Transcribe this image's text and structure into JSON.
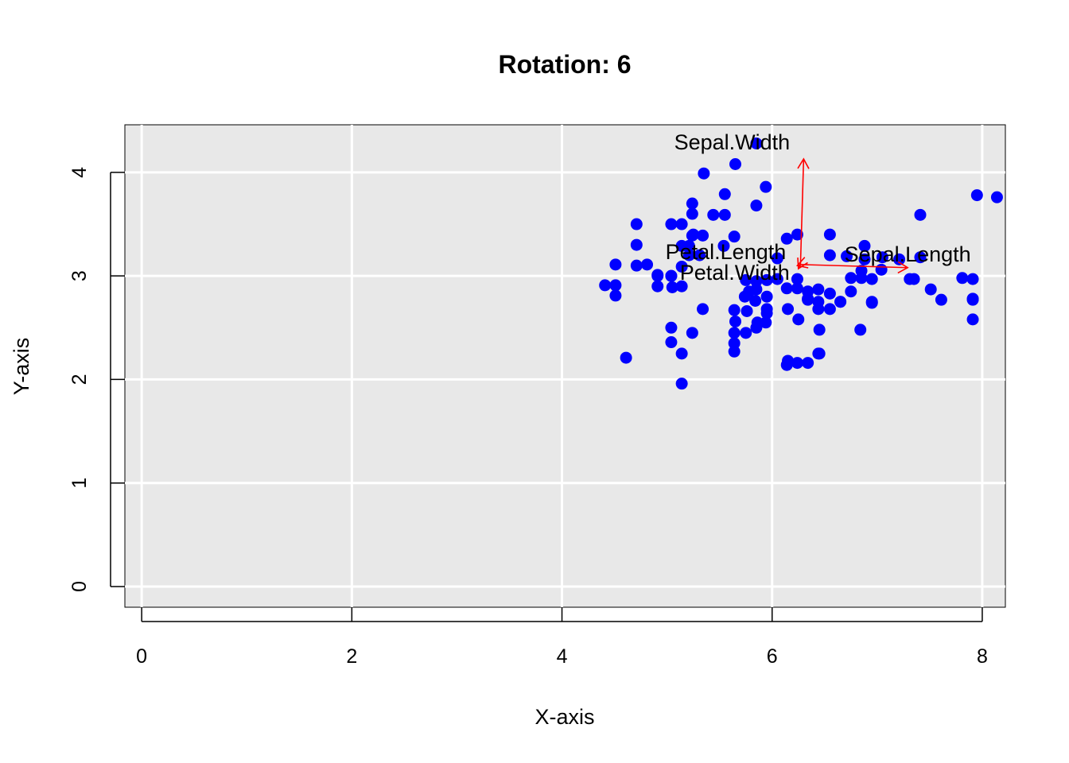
{
  "chart_data": {
    "type": "scatter",
    "title": "Rotation: 6",
    "xlabel": "X-axis",
    "ylabel": "Y-axis",
    "xlim": [
      -0.16,
      8.22
    ],
    "ylim": [
      -0.2,
      4.46
    ],
    "x_ticks": [
      "0",
      "2",
      "4",
      "6",
      "8"
    ],
    "y_ticks": [
      "0",
      "1",
      "2",
      "3",
      "4"
    ],
    "grid": true,
    "colors": {
      "panel_background": "#e8e8e8",
      "grid": "#ffffff",
      "points": "#0000ff",
      "arrows": "#ff0000"
    },
    "points": {
      "x": [
        5.85,
        5.65,
        5.35,
        5.94,
        5.55,
        5.55,
        5.85,
        5.44,
        5.24,
        5.24,
        5.25,
        4.71,
        5.04,
        5.14,
        5.24,
        5.34,
        5.14,
        5.21,
        5.64,
        4.71,
        4.51,
        4.81,
        4.71,
        4.41,
        4.51,
        4.51,
        5.04,
        4.91,
        5.14,
        5.54,
        5.04,
        5.31,
        5.21,
        5.14,
        6.14,
        6.05,
        6.24,
        6.55,
        6.55,
        6.71,
        6.88,
        6.88,
        7.04,
        7.21,
        7.41,
        7.41,
        7.35,
        7.81,
        7.91,
        7.91,
        7.95,
        8.14,
        7.91,
        7.91,
        7.61,
        7.51,
        7.31,
        7.05,
        6.95,
        6.85,
        6.75,
        6.55,
        6.34,
        6.14,
        6.24,
        6.34,
        6.44,
        6.55,
        6.65,
        6.75,
        6.95,
        6.45,
        6.45,
        6.25,
        6.65,
        6.44,
        6.34,
        6.15,
        6.44,
        6.24,
        6.05,
        5.95,
        5.85,
        5.85,
        5.75,
        5.78,
        5.84,
        5.86,
        5.94,
        5.75,
        5.64,
        5.64,
        5.64,
        5.76,
        5.85,
        5.95,
        5.95,
        5.95,
        5.65,
        5.64,
        5.74,
        6.15,
        6.24,
        6.14,
        6.34,
        6.44,
        5.04,
        5.04,
        5.14,
        5.24,
        5.34,
        4.61,
        5.14,
        4.91,
        4.91,
        5.05,
        6.84,
        6.95,
        6.85
      ],
      "y": [
        4.28,
        4.08,
        3.99,
        3.86,
        3.79,
        3.59,
        3.68,
        3.59,
        3.7,
        3.6,
        3.4,
        3.5,
        3.5,
        3.5,
        3.39,
        3.39,
        3.29,
        3.29,
        3.38,
        3.3,
        3.11,
        3.11,
        3.1,
        2.91,
        2.91,
        2.81,
        3.0,
        3.0,
        3.09,
        3.29,
        3.0,
        3.2,
        3.2,
        2.9,
        3.36,
        3.17,
        3.4,
        3.4,
        3.2,
        3.19,
        3.29,
        3.16,
        3.06,
        3.16,
        3.18,
        3.59,
        2.97,
        2.98,
        2.97,
        2.77,
        3.78,
        3.76,
        2.78,
        2.58,
        2.77,
        2.87,
        2.97,
        3.18,
        2.97,
        2.98,
        2.85,
        2.83,
        2.85,
        2.88,
        2.97,
        2.77,
        2.87,
        2.68,
        2.75,
        2.98,
        2.75,
        2.48,
        2.25,
        2.58,
        2.75,
        2.68,
        2.78,
        2.68,
        2.75,
        2.88,
        2.97,
        2.8,
        2.87,
        2.95,
        2.96,
        2.85,
        2.76,
        2.55,
        2.55,
        2.45,
        2.45,
        2.35,
        2.27,
        2.66,
        2.5,
        2.68,
        2.64,
        2.96,
        2.56,
        2.67,
        2.8,
        2.18,
        2.16,
        2.14,
        2.16,
        2.25,
        2.5,
        2.36,
        2.25,
        2.45,
        2.68,
        2.21,
        1.96,
        2.9,
        3.01,
        2.89,
        2.48,
        2.74,
        3.05
      ]
    },
    "arrows": {
      "origin": [
        6.27,
        3.11
      ],
      "vectors": [
        {
          "label": "Sepal.Width",
          "end": [
            6.3,
            4.13
          ]
        },
        {
          "label": "Sepal.Length",
          "end": [
            7.29,
            3.08
          ]
        },
        {
          "label": "Petal.Length",
          "end": [
            6.24,
            3.1
          ]
        },
        {
          "label": "Petal.Width",
          "end": [
            6.25,
            3.07
          ]
        }
      ]
    }
  }
}
